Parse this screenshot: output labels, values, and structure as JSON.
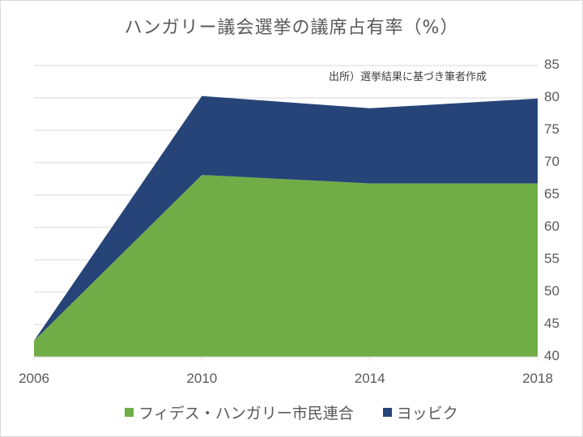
{
  "chart_data": {
    "type": "area",
    "stacked": true,
    "title": "ハンガリー議会選挙の議席占有率（%）",
    "annotation": "出所）選挙結果に基づき筆者作成",
    "xlabel": "",
    "ylabel": "",
    "categories": [
      "2006",
      "2010",
      "2014",
      "2018"
    ],
    "series": [
      {
        "name": "フィデス・ハンガリー市民連合",
        "color": "#70ad47",
        "values": [
          42.5,
          68.1,
          66.8,
          66.8
        ]
      },
      {
        "name": "ヨッビク",
        "color": "#264478",
        "values": [
          0.0,
          12.2,
          11.6,
          13.1
        ]
      }
    ],
    "ylim": [
      40,
      85
    ],
    "yticks": [
      "85",
      "80",
      "75",
      "70",
      "65",
      "60",
      "55",
      "50",
      "45",
      "40"
    ],
    "y_axis_position": "right",
    "grid": true,
    "legend_position": "bottom"
  }
}
